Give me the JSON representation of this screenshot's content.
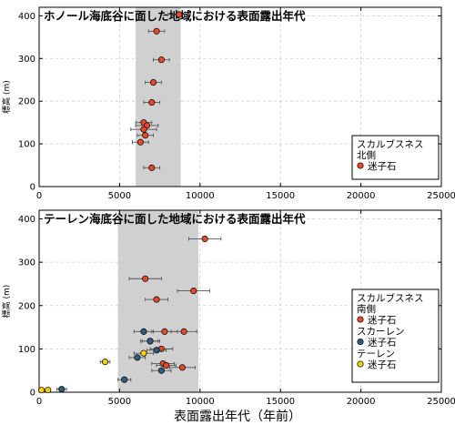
{
  "figure": {
    "xlabel": "表面露出年代（年前）"
  },
  "colors": {
    "red": "#e8492b",
    "blue": "#2f5f80",
    "yellow": "#f7cf0a",
    "band": "#d0d0d0",
    "grid": "#cccccc"
  },
  "chart_data": [
    {
      "type": "scatter",
      "title": "ホノール海底谷に面した地域における表面露出年代",
      "ylabel": "標高 (m)",
      "xlabel": "",
      "xlim": [
        0,
        25000
      ],
      "ylim": [
        0,
        420
      ],
      "xticks": [
        0,
        5000,
        10000,
        15000,
        20000,
        25000
      ],
      "yticks": [
        0,
        100,
        200,
        300,
        400
      ],
      "grid": true,
      "shaded_range": [
        6000,
        8800
      ],
      "legend": {
        "position": "right",
        "groups": [
          {
            "header": [
              "スカルブスネス",
              "北側"
            ],
            "entries": [
              {
                "label": "迷子石",
                "color": "red"
              }
            ]
          }
        ]
      },
      "series": [
        {
          "name": "迷子石",
          "color": "red",
          "points": [
            {
              "x": 8700,
              "y": 403,
              "err": 700
            },
            {
              "x": 7300,
              "y": 364,
              "err": 500
            },
            {
              "x": 7600,
              "y": 297,
              "err": 500
            },
            {
              "x": 7100,
              "y": 244,
              "err": 500
            },
            {
              "x": 7000,
              "y": 197,
              "err": 500
            },
            {
              "x": 6500,
              "y": 150,
              "err": 500
            },
            {
              "x": 6700,
              "y": 143,
              "err": 700
            },
            {
              "x": 6500,
              "y": 134,
              "err": 800
            },
            {
              "x": 6600,
              "y": 120,
              "err": 500
            },
            {
              "x": 6300,
              "y": 104,
              "err": 500
            },
            {
              "x": 7000,
              "y": 44,
              "err": 500
            }
          ]
        }
      ]
    },
    {
      "type": "scatter",
      "title": "テーレン海底谷に面した地域における表面露出年代",
      "ylabel": "標高 (m)",
      "xlabel": "表面露出年代（年前）",
      "xlim": [
        0,
        25000
      ],
      "ylim": [
        0,
        420
      ],
      "xticks": [
        0,
        5000,
        10000,
        15000,
        20000,
        25000
      ],
      "yticks": [
        0,
        100,
        200,
        300,
        400
      ],
      "grid": true,
      "shaded_range": [
        4900,
        9900
      ],
      "legend": {
        "position": "right",
        "groups": [
          {
            "header": [
              "スカルブスネス",
              "南側"
            ],
            "entries": [
              {
                "label": "迷子石",
                "color": "red"
              }
            ]
          },
          {
            "header": [
              "スカーレン"
            ],
            "entries": [
              {
                "label": "迷子石",
                "color": "blue"
              }
            ]
          },
          {
            "header": [
              "テーレン"
            ],
            "entries": [
              {
                "label": "迷子石",
                "color": "yellow"
              }
            ]
          }
        ]
      },
      "series": [
        {
          "name": "スカルブスネス 南側 迷子石",
          "color": "red",
          "points": [
            {
              "x": 10300,
              "y": 354,
              "err": 1000
            },
            {
              "x": 6600,
              "y": 262,
              "err": 1000
            },
            {
              "x": 9600,
              "y": 234,
              "err": 1000
            },
            {
              "x": 7300,
              "y": 214,
              "err": 700
            },
            {
              "x": 7800,
              "y": 140,
              "err": 800
            },
            {
              "x": 9000,
              "y": 140,
              "err": 800
            },
            {
              "x": 7600,
              "y": 100,
              "err": 700
            },
            {
              "x": 7700,
              "y": 66,
              "err": 700
            },
            {
              "x": 7900,
              "y": 62,
              "err": 600
            },
            {
              "x": 8900,
              "y": 57,
              "err": 800
            }
          ]
        },
        {
          "name": "スカーレン 迷子石",
          "color": "blue",
          "points": [
            {
              "x": 6500,
              "y": 140,
              "err": 600
            },
            {
              "x": 6900,
              "y": 118,
              "err": 600
            },
            {
              "x": 7300,
              "y": 97,
              "err": 600
            },
            {
              "x": 6900,
              "y": 118,
              "err": 500
            },
            {
              "x": 6100,
              "y": 80,
              "err": 500
            },
            {
              "x": 5300,
              "y": 29,
              "err": 400
            },
            {
              "x": 7600,
              "y": 50,
              "err": 600
            },
            {
              "x": 1400,
              "y": 7,
              "err": 300
            }
          ]
        },
        {
          "name": "テーレン 迷子石",
          "color": "yellow",
          "points": [
            {
              "x": 4100,
              "y": 70,
              "err": 300
            },
            {
              "x": 6500,
              "y": 90,
              "err": 600
            },
            {
              "x": 150,
              "y": 5,
              "err": 0
            },
            {
              "x": 550,
              "y": 5,
              "err": 0
            }
          ]
        }
      ]
    }
  ]
}
